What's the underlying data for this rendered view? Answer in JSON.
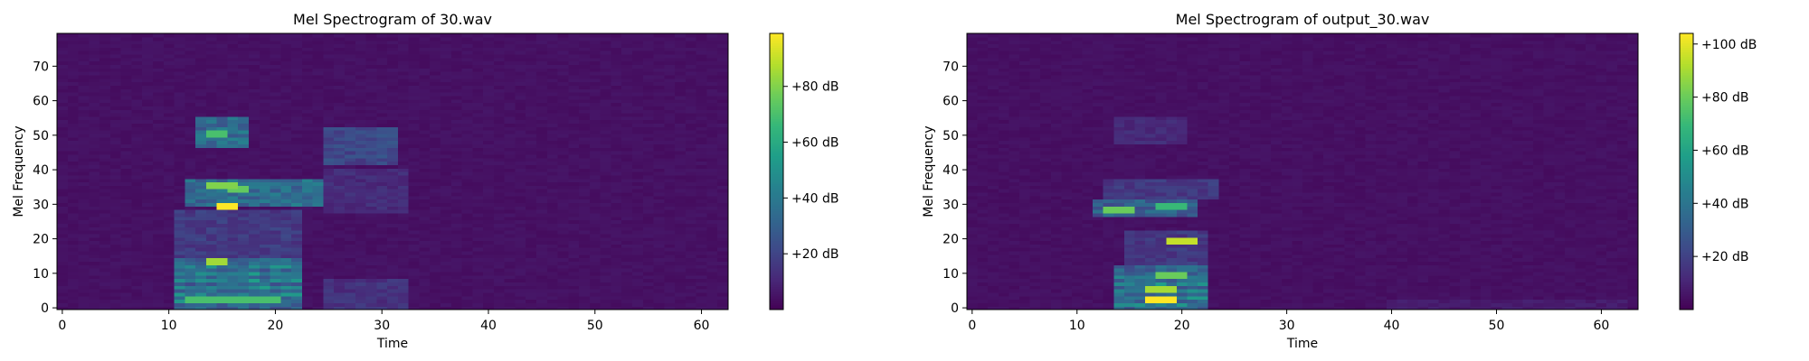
{
  "chart_data": [
    {
      "type": "heatmap",
      "title": "Mel Spectrogram of 30.wav",
      "xlabel": "Time",
      "ylabel": "Mel Frequency",
      "xlim": [
        -0.5,
        62.5
      ],
      "ylim": [
        -0.5,
        79.5
      ],
      "xticks": [
        0,
        10,
        20,
        30,
        40,
        50,
        60
      ],
      "yticks": [
        0,
        10,
        20,
        30,
        40,
        50,
        60,
        70
      ],
      "colorbar": {
        "ticks": [
          20,
          40,
          60,
          80
        ],
        "tick_labels": [
          "+20 dB",
          "+40 dB",
          "+60 dB",
          "+80 dB"
        ],
        "range": [
          0,
          99
        ],
        "colormap": "viridis"
      },
      "n_frames": 63,
      "n_mels": 80,
      "features": [
        {
          "t": [
            11,
            22
          ],
          "m": [
            0,
            14
          ],
          "level": 40,
          "bands": [
            2,
            4,
            6,
            8,
            10,
            12
          ]
        },
        {
          "t": [
            25,
            32
          ],
          "m": [
            0,
            8
          ],
          "level": 18
        },
        {
          "t": [
            12,
            24
          ],
          "m": [
            30,
            37
          ],
          "level": 45
        },
        {
          "t": [
            25,
            32
          ],
          "m": [
            28,
            40
          ],
          "level": 16
        },
        {
          "t": [
            13,
            17
          ],
          "m": [
            47,
            55
          ],
          "level": 45
        },
        {
          "t": [
            25,
            31
          ],
          "m": [
            42,
            52
          ],
          "level": 28
        },
        {
          "t": [
            11,
            22
          ],
          "m": [
            15,
            28
          ],
          "level": 22
        }
      ],
      "peaks": [
        {
          "t": [
            15,
            16
          ],
          "m": [
            29,
            30
          ],
          "level": 99
        },
        {
          "t": [
            14,
            15
          ],
          "m": [
            13,
            14
          ],
          "level": 85
        },
        {
          "t": [
            14,
            16
          ],
          "m": [
            35,
            36
          ],
          "level": 80
        },
        {
          "t": [
            16,
            17
          ],
          "m": [
            34,
            35
          ],
          "level": 75
        },
        {
          "t": [
            14,
            15
          ],
          "m": [
            50,
            51
          ],
          "level": 70
        },
        {
          "t": [
            12,
            20
          ],
          "m": [
            2,
            3
          ],
          "level": 70
        }
      ]
    },
    {
      "type": "heatmap",
      "title": "Mel Spectrogram of output_30.wav",
      "xlabel": "Time",
      "ylabel": "Mel Frequency",
      "xlim": [
        -0.5,
        63.5
      ],
      "ylim": [
        -0.5,
        79.5
      ],
      "xticks": [
        0,
        10,
        20,
        30,
        40,
        50,
        60
      ],
      "yticks": [
        0,
        10,
        20,
        30,
        40,
        50,
        60,
        70
      ],
      "colorbar": {
        "ticks": [
          20,
          40,
          60,
          80,
          100
        ],
        "tick_labels": [
          "+20 dB",
          "+40 dB",
          "+60 dB",
          "+80 dB",
          "+100 dB"
        ],
        "range": [
          0,
          104
        ],
        "colormap": "viridis"
      },
      "n_frames": 64,
      "n_mels": 80,
      "features": [
        {
          "t": [
            14,
            22
          ],
          "m": [
            0,
            12
          ],
          "level": 42,
          "bands": [
            1,
            3,
            5,
            7,
            9
          ]
        },
        {
          "t": [
            12,
            21
          ],
          "m": [
            27,
            31
          ],
          "level": 40
        },
        {
          "t": [
            13,
            23
          ],
          "m": [
            32,
            37
          ],
          "level": 22
        },
        {
          "t": [
            14,
            20
          ],
          "m": [
            48,
            55
          ],
          "level": 16
        },
        {
          "t": [
            15,
            22
          ],
          "m": [
            13,
            22
          ],
          "level": 22
        },
        {
          "t": [
            40,
            62
          ],
          "m": [
            0,
            2
          ],
          "level": 10
        }
      ],
      "peaks": [
        {
          "t": [
            17,
            19
          ],
          "m": [
            2,
            3
          ],
          "level": 104
        },
        {
          "t": [
            19,
            21
          ],
          "m": [
            19,
            20
          ],
          "level": 95
        },
        {
          "t": [
            13,
            15
          ],
          "m": [
            28,
            29
          ],
          "level": 80
        },
        {
          "t": [
            17,
            19
          ],
          "m": [
            5,
            6
          ],
          "level": 90
        },
        {
          "t": [
            18,
            20
          ],
          "m": [
            9,
            10
          ],
          "level": 80
        },
        {
          "t": [
            18,
            20
          ],
          "m": [
            29,
            30
          ],
          "level": 70
        }
      ]
    }
  ]
}
